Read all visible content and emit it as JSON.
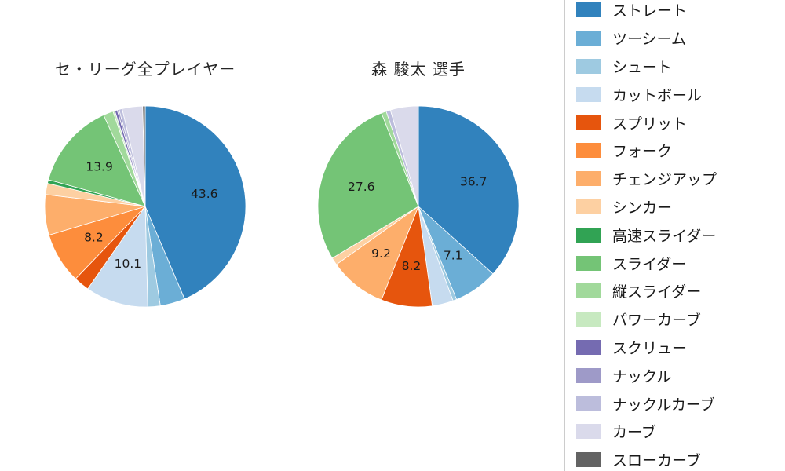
{
  "titles": {
    "left": "セ・リーグ全プレイヤー",
    "right": "森 駿太  選手"
  },
  "legend": {
    "items": [
      {
        "label": "ストレート",
        "color": "#3182bd"
      },
      {
        "label": "ツーシーム",
        "color": "#6baed6"
      },
      {
        "label": "シュート",
        "color": "#9ecae1"
      },
      {
        "label": "カットボール",
        "color": "#c6dbef"
      },
      {
        "label": "スプリット",
        "color": "#e6550d"
      },
      {
        "label": "フォーク",
        "color": "#fd8d3c"
      },
      {
        "label": "チェンジアップ",
        "color": "#fdae6b"
      },
      {
        "label": "シンカー",
        "color": "#fdd0a2"
      },
      {
        "label": "高速スライダー",
        "color": "#31a354"
      },
      {
        "label": "スライダー",
        "color": "#74c476"
      },
      {
        "label": "縦スライダー",
        "color": "#a1d99b"
      },
      {
        "label": "パワーカーブ",
        "color": "#c7e9c0"
      },
      {
        "label": "スクリュー",
        "color": "#756bb1"
      },
      {
        "label": "ナックル",
        "color": "#9e9ac8"
      },
      {
        "label": "ナックルカーブ",
        "color": "#bcbddc"
      },
      {
        "label": "カーブ",
        "color": "#dadaeb"
      },
      {
        "label": "スローカーブ",
        "color": "#636363"
      }
    ]
  },
  "chart_data": [
    {
      "type": "pie",
      "title": "セ・リーグ全プレイヤー",
      "start_angle_deg": 90,
      "direction": "clockwise",
      "label_threshold": 7,
      "labels_shown_on_chart": [
        "43.6",
        "10.1",
        "8.2",
        "13.9"
      ],
      "series": [
        {
          "name": "ストレート",
          "value": 43.6,
          "color": "#3182bd"
        },
        {
          "name": "ツーシーム",
          "value": 4.0,
          "color": "#6baed6"
        },
        {
          "name": "シュート",
          "value": 2.0,
          "color": "#9ecae1"
        },
        {
          "name": "カットボール",
          "value": 10.1,
          "color": "#c6dbef"
        },
        {
          "name": "スプリット",
          "value": 2.5,
          "color": "#e6550d"
        },
        {
          "name": "フォーク",
          "value": 8.2,
          "color": "#fd8d3c"
        },
        {
          "name": "チェンジアップ",
          "value": 6.5,
          "color": "#fdae6b"
        },
        {
          "name": "シンカー",
          "value": 1.8,
          "color": "#fdd0a2"
        },
        {
          "name": "高速スライダー",
          "value": 0.6,
          "color": "#31a354"
        },
        {
          "name": "スライダー",
          "value": 13.9,
          "color": "#74c476"
        },
        {
          "name": "縦スライダー",
          "value": 1.6,
          "color": "#a1d99b"
        },
        {
          "name": "パワーカーブ",
          "value": 0.3,
          "color": "#c7e9c0"
        },
        {
          "name": "スクリュー",
          "value": 0.4,
          "color": "#756bb1"
        },
        {
          "name": "ナックル",
          "value": 0.3,
          "color": "#9e9ac8"
        },
        {
          "name": "ナックルカーブ",
          "value": 0.5,
          "color": "#bcbddc"
        },
        {
          "name": "カーブ",
          "value": 3.3,
          "color": "#dadaeb"
        },
        {
          "name": "スローカーブ",
          "value": 0.4,
          "color": "#636363"
        }
      ]
    },
    {
      "type": "pie",
      "title": "森 駿太  選手",
      "start_angle_deg": 90,
      "direction": "clockwise",
      "label_threshold": 7,
      "labels_shown_on_chart": [
        "36.7",
        "7.1",
        "8.2",
        "9.2",
        "27.6"
      ],
      "series": [
        {
          "name": "ストレート",
          "value": 36.7,
          "color": "#3182bd"
        },
        {
          "name": "ツーシーム",
          "value": 7.1,
          "color": "#6baed6"
        },
        {
          "name": "シュート",
          "value": 0.6,
          "color": "#9ecae1"
        },
        {
          "name": "カットボール",
          "value": 3.4,
          "color": "#c6dbef"
        },
        {
          "name": "スプリット",
          "value": 8.2,
          "color": "#e6550d"
        },
        {
          "name": "チェンジアップ",
          "value": 9.2,
          "color": "#fdae6b"
        },
        {
          "name": "シンカー",
          "value": 1.2,
          "color": "#fdd0a2"
        },
        {
          "name": "スライダー",
          "value": 27.6,
          "color": "#74c476"
        },
        {
          "name": "縦スライダー",
          "value": 0.8,
          "color": "#a1d99b"
        },
        {
          "name": "ナックルカーブ",
          "value": 0.7,
          "color": "#bcbddc"
        },
        {
          "name": "カーブ",
          "value": 4.5,
          "color": "#dadaeb"
        }
      ]
    }
  ]
}
